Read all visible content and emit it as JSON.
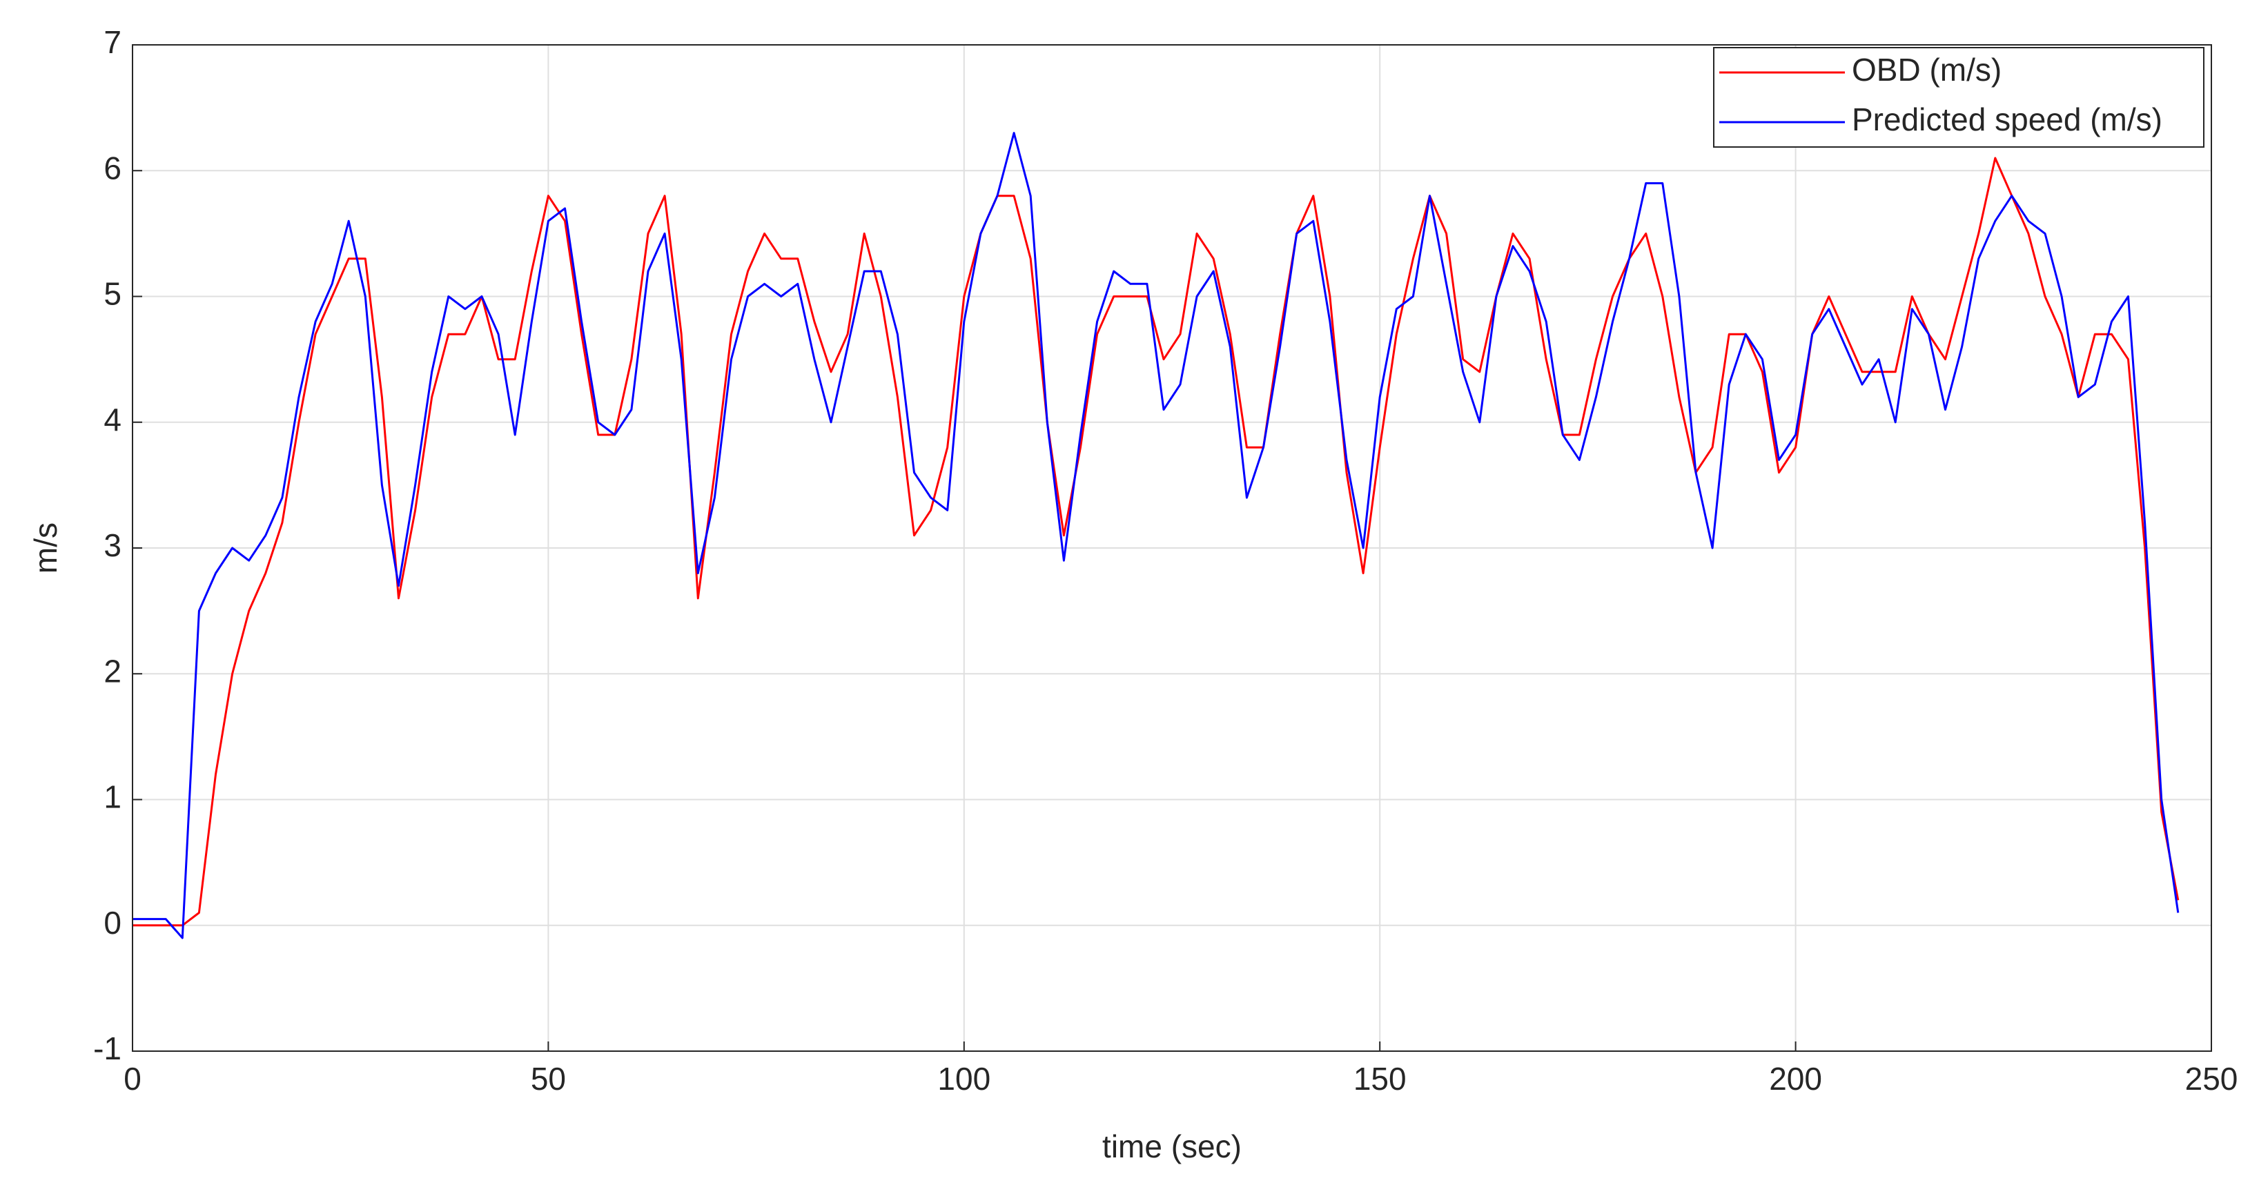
{
  "chart_data": {
    "type": "line",
    "xlabel": "time (sec)",
    "ylabel": "m/s",
    "xlim": [
      0,
      250
    ],
    "xticks": [
      0,
      50,
      100,
      150,
      200,
      250
    ],
    "ylim": [
      -1,
      7
    ],
    "yticks": [
      -1,
      0,
      1,
      2,
      3,
      4,
      5,
      6,
      7
    ],
    "grid": true,
    "legend": "upper right",
    "x": [
      0,
      2,
      4,
      6,
      8,
      10,
      12,
      14,
      16,
      18,
      20,
      22,
      24,
      26,
      28,
      30,
      32,
      34,
      36,
      38,
      40,
      42,
      44,
      46,
      48,
      50,
      52,
      54,
      56,
      58,
      60,
      62,
      64,
      66,
      68,
      70,
      72,
      74,
      76,
      78,
      80,
      82,
      84,
      86,
      88,
      90,
      92,
      94,
      96,
      98,
      100,
      102,
      104,
      106,
      108,
      110,
      112,
      114,
      116,
      118,
      120,
      122,
      124,
      126,
      128,
      130,
      132,
      134,
      136,
      138,
      140,
      142,
      144,
      146,
      148,
      150,
      152,
      154,
      156,
      158,
      160,
      162,
      164,
      166,
      168,
      170,
      172,
      174,
      176,
      178,
      180,
      182,
      184,
      186,
      188,
      190,
      192,
      194,
      196,
      198,
      200,
      202,
      204,
      206,
      208,
      210,
      212,
      214,
      216,
      218,
      220,
      222,
      224,
      226,
      228,
      230,
      232,
      234,
      236,
      238,
      240,
      242,
      244,
      246
    ],
    "series": [
      {
        "name": "OBD (m/s)",
        "color": "#ff0000",
        "values": [
          0,
          0,
          0,
          0,
          0.1,
          1.2,
          2.0,
          2.5,
          2.8,
          3.2,
          4.0,
          4.7,
          5.0,
          5.3,
          5.3,
          4.2,
          2.6,
          3.3,
          4.2,
          4.7,
          4.7,
          5.0,
          4.5,
          4.5,
          5.2,
          5.8,
          5.6,
          4.7,
          3.9,
          3.9,
          4.5,
          5.5,
          5.8,
          4.7,
          2.6,
          3.6,
          4.7,
          5.2,
          5.5,
          5.3,
          5.3,
          4.8,
          4.4,
          4.7,
          5.5,
          5.0,
          4.2,
          3.1,
          3.3,
          3.8,
          5.0,
          5.5,
          5.8,
          5.8,
          5.3,
          4.0,
          3.1,
          3.8,
          4.7,
          5.0,
          5.0,
          5.0,
          4.5,
          4.7,
          5.5,
          5.3,
          4.7,
          3.8,
          3.8,
          4.7,
          5.5,
          5.8,
          5.0,
          3.6,
          2.8,
          3.8,
          4.7,
          5.3,
          5.8,
          5.5,
          4.5,
          4.4,
          5.0,
          5.5,
          5.3,
          4.5,
          3.9,
          3.9,
          4.5,
          5.0,
          5.3,
          5.5,
          5.0,
          4.2,
          3.6,
          3.8,
          4.7,
          4.7,
          4.4,
          3.6,
          3.8,
          4.7,
          5.0,
          4.7,
          4.4,
          4.4,
          4.4,
          5.0,
          4.7,
          4.5,
          5.0,
          5.5,
          6.1,
          5.8,
          5.5,
          5.0,
          4.7,
          4.2,
          4.7,
          4.7,
          4.5,
          3.0,
          0.9,
          0.2
        ]
      },
      {
        "name": "Predicted speed (m/s)",
        "color": "#0000ff",
        "values": [
          0.05,
          0.05,
          0.05,
          -0.1,
          2.5,
          2.8,
          3.0,
          2.9,
          3.1,
          3.4,
          4.2,
          4.8,
          5.1,
          5.6,
          5.0,
          3.5,
          2.7,
          3.5,
          4.4,
          5.0,
          4.9,
          5.0,
          4.7,
          3.9,
          4.8,
          5.6,
          5.7,
          4.8,
          4.0,
          3.9,
          4.1,
          5.2,
          5.5,
          4.5,
          2.8,
          3.4,
          4.5,
          5.0,
          5.1,
          5.0,
          5.1,
          4.5,
          4.0,
          4.6,
          5.2,
          5.2,
          4.7,
          3.6,
          3.4,
          3.3,
          4.8,
          5.5,
          5.8,
          6.3,
          5.8,
          4.0,
          2.9,
          3.9,
          4.8,
          5.2,
          5.1,
          5.1,
          4.1,
          4.3,
          5.0,
          5.2,
          4.6,
          3.4,
          3.8,
          4.6,
          5.5,
          5.6,
          4.8,
          3.7,
          3.0,
          4.2,
          4.9,
          5.0,
          5.8,
          5.1,
          4.4,
          4.0,
          5.0,
          5.4,
          5.2,
          4.8,
          3.9,
          3.7,
          4.2,
          4.8,
          5.3,
          5.9,
          5.9,
          5.0,
          3.6,
          3.0,
          4.3,
          4.7,
          4.5,
          3.7,
          3.9,
          4.7,
          4.9,
          4.6,
          4.3,
          4.5,
          4.0,
          4.9,
          4.7,
          4.1,
          4.6,
          5.3,
          5.6,
          5.8,
          5.6,
          5.5,
          5.0,
          4.2,
          4.3,
          4.8,
          5.0,
          3.2,
          1.0,
          0.1
        ]
      }
    ]
  }
}
